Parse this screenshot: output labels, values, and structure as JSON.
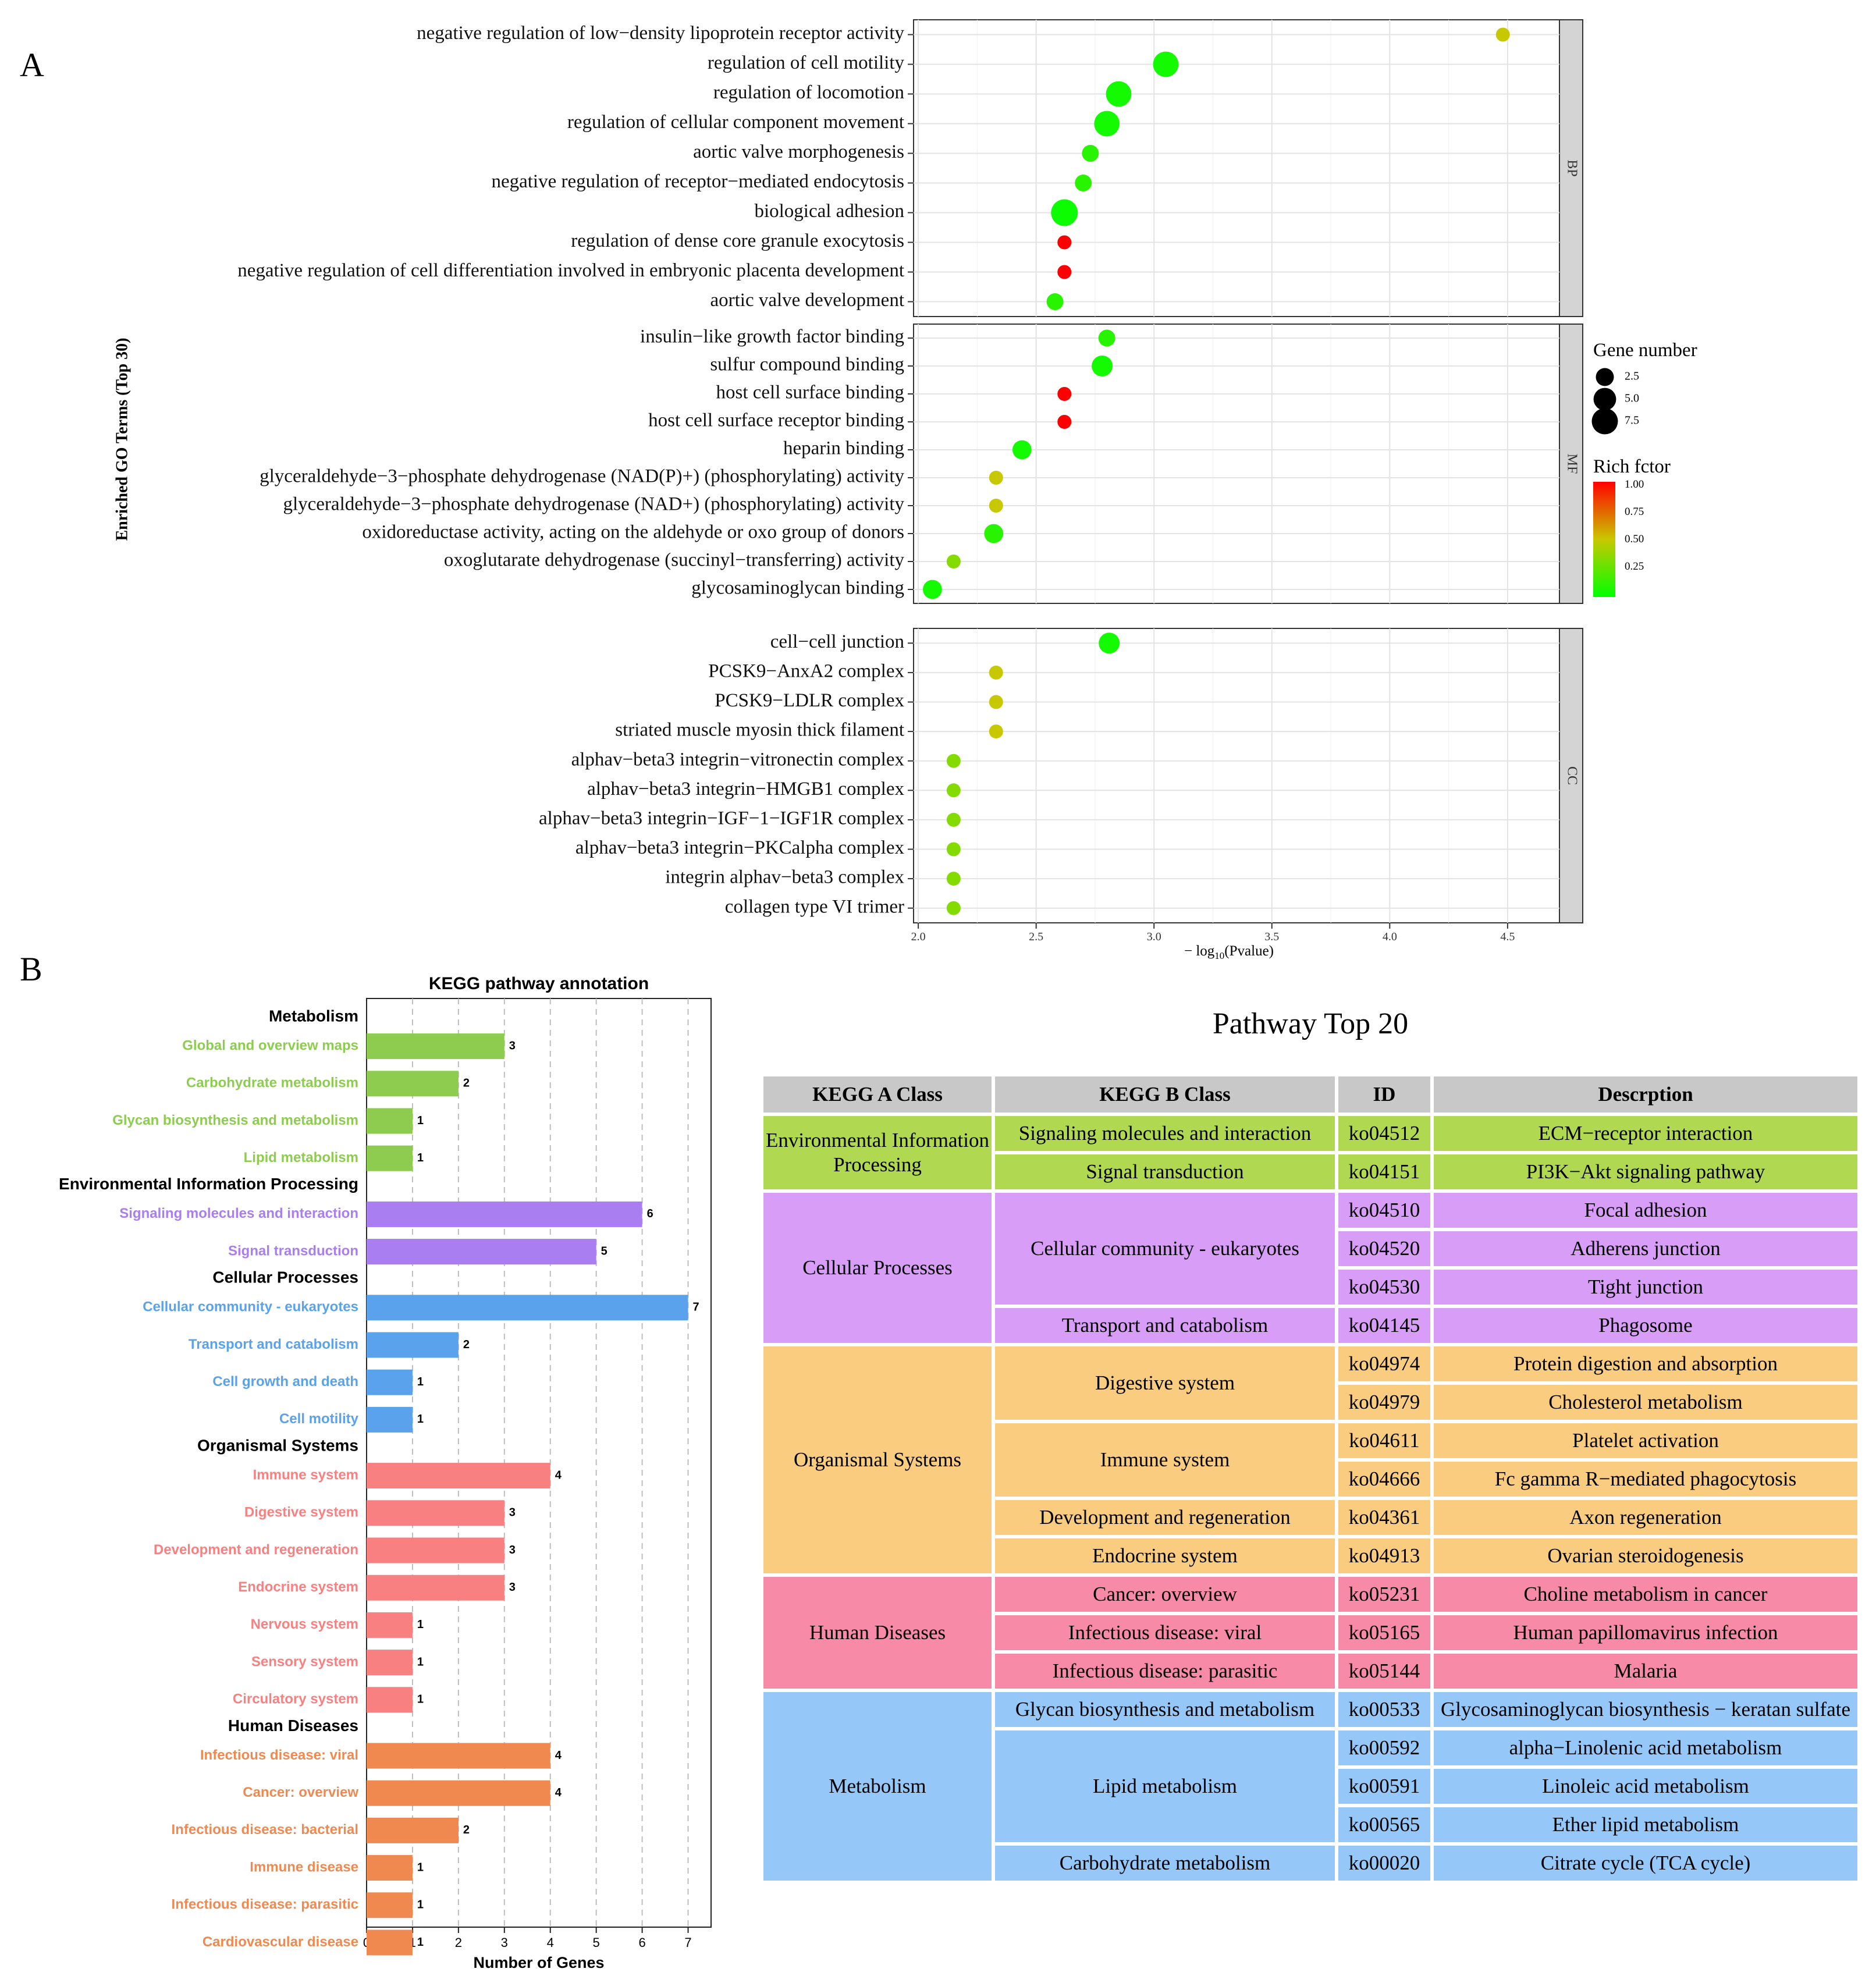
{
  "panel_labels": {
    "a": "A",
    "b": "B"
  },
  "chart_data": [
    {
      "type": "scatter",
      "title": "",
      "ylabel": "Enriched GO Terms (Top 30)",
      "xlabel": "− log10(Pvalue)",
      "xlabel_main": "− log",
      "xlabel_sub": "10",
      "xlabel_tail": "(Pvalue)",
      "xlim": [
        1.98,
        4.72
      ],
      "xticks": [
        2.0,
        2.5,
        3.0,
        3.5,
        4.0,
        4.5
      ],
      "xtick_labels": [
        "2.0",
        "2.5",
        "3.0",
        "3.5",
        "4.0",
        "4.5"
      ],
      "grid": true,
      "facets": [
        {
          "name": "BP",
          "terms": [
            {
              "term": "negative regulation of low−density lipoprotein receptor activity",
              "x": 4.48,
              "genes": 1,
              "rich": 0.5
            },
            {
              "term": "regulation of cell motility",
              "x": 3.05,
              "genes": 7,
              "rich": 0.05
            },
            {
              "term": "regulation of locomotion",
              "x": 2.85,
              "genes": 7,
              "rich": 0.05
            },
            {
              "term": "regulation of cellular component movement",
              "x": 2.8,
              "genes": 7,
              "rich": 0.05
            },
            {
              "term": "aortic valve morphogenesis",
              "x": 2.73,
              "genes": 2,
              "rich": 0.1
            },
            {
              "term": "negative regulation of receptor−mediated endocytosis",
              "x": 2.7,
              "genes": 2,
              "rich": 0.1
            },
            {
              "term": "biological adhesion",
              "x": 2.62,
              "genes": 8,
              "rich": 0.03
            },
            {
              "term": "regulation of dense core granule exocytosis",
              "x": 2.62,
              "genes": 1,
              "rich": 1.0
            },
            {
              "term": "negative regulation of cell differentiation involved in embryonic placenta development",
              "x": 2.62,
              "genes": 1,
              "rich": 1.0
            },
            {
              "term": "aortic valve development",
              "x": 2.58,
              "genes": 2,
              "rich": 0.1
            }
          ]
        },
        {
          "name": "MF",
          "terms": [
            {
              "term": "insulin−like growth factor binding",
              "x": 2.8,
              "genes": 2,
              "rich": 0.1
            },
            {
              "term": "sulfur compound binding",
              "x": 2.78,
              "genes": 4,
              "rich": 0.05
            },
            {
              "term": "host cell surface binding",
              "x": 2.62,
              "genes": 1,
              "rich": 1.0
            },
            {
              "term": "host cell surface receptor binding",
              "x": 2.62,
              "genes": 1,
              "rich": 1.0
            },
            {
              "term": "heparin binding",
              "x": 2.44,
              "genes": 3,
              "rich": 0.05
            },
            {
              "term": "glyceraldehyde−3−phosphate dehydrogenase (NAD(P)+) (phosphorylating) activity",
              "x": 2.33,
              "genes": 1,
              "rich": 0.5
            },
            {
              "term": "glyceraldehyde−3−phosphate dehydrogenase (NAD+) (phosphorylating) activity",
              "x": 2.33,
              "genes": 1,
              "rich": 0.5
            },
            {
              "term": "oxidoreductase activity, acting on the aldehyde or oxo group of donors",
              "x": 2.32,
              "genes": 3,
              "rich": 0.1
            },
            {
              "term": "oxoglutarate dehydrogenase (succinyl−transferring) activity",
              "x": 2.15,
              "genes": 1,
              "rich": 0.33
            },
            {
              "term": "glycosaminoglycan binding",
              "x": 2.06,
              "genes": 3,
              "rich": 0.05
            }
          ]
        },
        {
          "name": "CC",
          "terms": [
            {
              "term": "cell−cell junction",
              "x": 2.81,
              "genes": 4,
              "rich": 0.05
            },
            {
              "term": "PCSK9−AnxA2 complex",
              "x": 2.33,
              "genes": 1,
              "rich": 0.5
            },
            {
              "term": "PCSK9−LDLR complex",
              "x": 2.33,
              "genes": 1,
              "rich": 0.5
            },
            {
              "term": "striated muscle myosin thick filament",
              "x": 2.33,
              "genes": 1,
              "rich": 0.5
            },
            {
              "term": "alphav−beta3 integrin−vitronectin complex",
              "x": 2.15,
              "genes": 1,
              "rich": 0.33
            },
            {
              "term": "alphav−beta3 integrin−HMGB1 complex",
              "x": 2.15,
              "genes": 1,
              "rich": 0.33
            },
            {
              "term": "alphav−beta3 integrin−IGF−1−IGF1R complex",
              "x": 2.15,
              "genes": 1,
              "rich": 0.33
            },
            {
              "term": "alphav−beta3 integrin−PKCalpha complex",
              "x": 2.15,
              "genes": 1,
              "rich": 0.33
            },
            {
              "term": "integrin alphav−beta3 complex",
              "x": 2.15,
              "genes": 1,
              "rich": 0.33
            },
            {
              "term": "collagen type VI trimer",
              "x": 2.15,
              "genes": 1,
              "rich": 0.33
            }
          ]
        }
      ],
      "legend": {
        "size_title": "Gene number",
        "size_values": [
          2.5,
          5.0,
          7.5
        ],
        "size_labels": [
          "2.5",
          "5.0",
          "7.5"
        ],
        "color_title": "Rich fctor",
        "color_ticks": [
          1.0,
          0.75,
          0.5,
          0.25
        ],
        "color_labels": [
          "1.00",
          "0.75",
          "0.50",
          "0.25"
        ],
        "color_low": "#00ff00",
        "color_high": "#ff0000"
      }
    },
    {
      "type": "bar",
      "orientation": "horizontal",
      "title": "KEGG pathway annotation",
      "xlabel": "Number of Genes",
      "xlim": [
        0,
        7.5
      ],
      "xticks": [
        0,
        1,
        2,
        3,
        4,
        5,
        6,
        7
      ],
      "xtick_labels": [
        "0",
        "1",
        "2",
        "3",
        "4",
        "5",
        "6",
        "7"
      ],
      "groups": [
        {
          "name": "Metabolism",
          "color": "#8dcc4f",
          "bars": [
            {
              "label": "Global and overview maps",
              "value": 3
            },
            {
              "label": "Carbohydrate metabolism",
              "value": 2
            },
            {
              "label": "Glycan biosynthesis and metabolism",
              "value": 1
            },
            {
              "label": "Lipid metabolism",
              "value": 1
            }
          ]
        },
        {
          "name": "Environmental Information Processing",
          "color": "#a87ef0",
          "bars": [
            {
              "label": "Signaling molecules and interaction",
              "value": 6
            },
            {
              "label": "Signal transduction",
              "value": 5
            }
          ]
        },
        {
          "name": "Cellular Processes",
          "color": "#5aa2ec",
          "bars": [
            {
              "label": "Cellular community - eukaryotes",
              "value": 7
            },
            {
              "label": "Transport and catabolism",
              "value": 2
            },
            {
              "label": "Cell growth and death",
              "value": 1
            },
            {
              "label": "Cell motility",
              "value": 1
            }
          ]
        },
        {
          "name": "Organismal Systems",
          "color": "#f98080",
          "bars": [
            {
              "label": "Immune system",
              "value": 4
            },
            {
              "label": "Digestive system",
              "value": 3
            },
            {
              "label": "Development and regeneration",
              "value": 3
            },
            {
              "label": "Endocrine system",
              "value": 3
            },
            {
              "label": "Nervous system",
              "value": 1
            },
            {
              "label": "Sensory system",
              "value": 1
            },
            {
              "label": "Circulatory system",
              "value": 1
            }
          ]
        },
        {
          "name": "Human Diseases",
          "color": "#f0894f",
          "bars": [
            {
              "label": "Infectious disease: viral",
              "value": 4
            },
            {
              "label": "Cancer: overview",
              "value": 4
            },
            {
              "label": "Infectious disease: bacterial",
              "value": 2
            },
            {
              "label": "Immune disease",
              "value": 1
            },
            {
              "label": "Infectious disease: parasitic",
              "value": 1
            },
            {
              "label": "Cardiovascular disease",
              "value": 1
            }
          ]
        }
      ]
    }
  ],
  "pathway_table": {
    "title": "Pathway Top 20",
    "headers": [
      "KEGG A Class",
      "KEGG B Class",
      "ID",
      "Descrption"
    ],
    "colors": {
      "header": "#c8c8c8",
      "env": "#b0d850",
      "cell": "#d79df7",
      "org": "#f9cc80",
      "human": "#f78aa6",
      "metab": "#95c8f9"
    },
    "a_classes": [
      "Environmental Information Processing",
      "Cellular Processes",
      "Organismal Systems",
      "Human Diseases",
      "Metabolism"
    ],
    "b_classes": [
      "Signaling molecules and interaction",
      "Signal transduction",
      "Cellular community - eukaryotes",
      "Transport and catabolism",
      "Digestive system",
      "Immune system",
      "Development and regeneration",
      "Endocrine system",
      "Cancer: overview",
      "Infectious disease: viral",
      "Infectious disease: parasitic",
      "Glycan biosynthesis and metabolism",
      "Lipid metabolism",
      "Carbohydrate metabolism"
    ],
    "ids": [
      "ko04512",
      "ko04151",
      "ko04510",
      "ko04520",
      "ko04530",
      "ko04145",
      "ko04974",
      "ko04979",
      "ko04611",
      "ko04666",
      "ko04361",
      "ko04913",
      "ko05231",
      "ko05165",
      "ko05144",
      "ko00533",
      "ko00592",
      "ko00591",
      "ko00565",
      "ko00020"
    ],
    "descriptions": [
      "ECM−receptor interaction",
      "PI3K−Akt signaling pathway",
      "Focal adhesion",
      "Adherens junction",
      "Tight junction",
      "Phagosome",
      "Protein digestion and absorption",
      "Cholesterol metabolism",
      "Platelet activation",
      "Fc gamma R−mediated phagocytosis",
      "Axon regeneration",
      "Ovarian steroidogenesis",
      "Choline metabolism in cancer",
      "Human papillomavirus infection",
      "Malaria",
      "Glycosaminoglycan biosynthesis − keratan sulfate",
      "alpha−Linolenic acid metabolism",
      "Linoleic acid metabolism",
      "Ether lipid metabolism",
      "Citrate cycle (TCA cycle)"
    ]
  }
}
